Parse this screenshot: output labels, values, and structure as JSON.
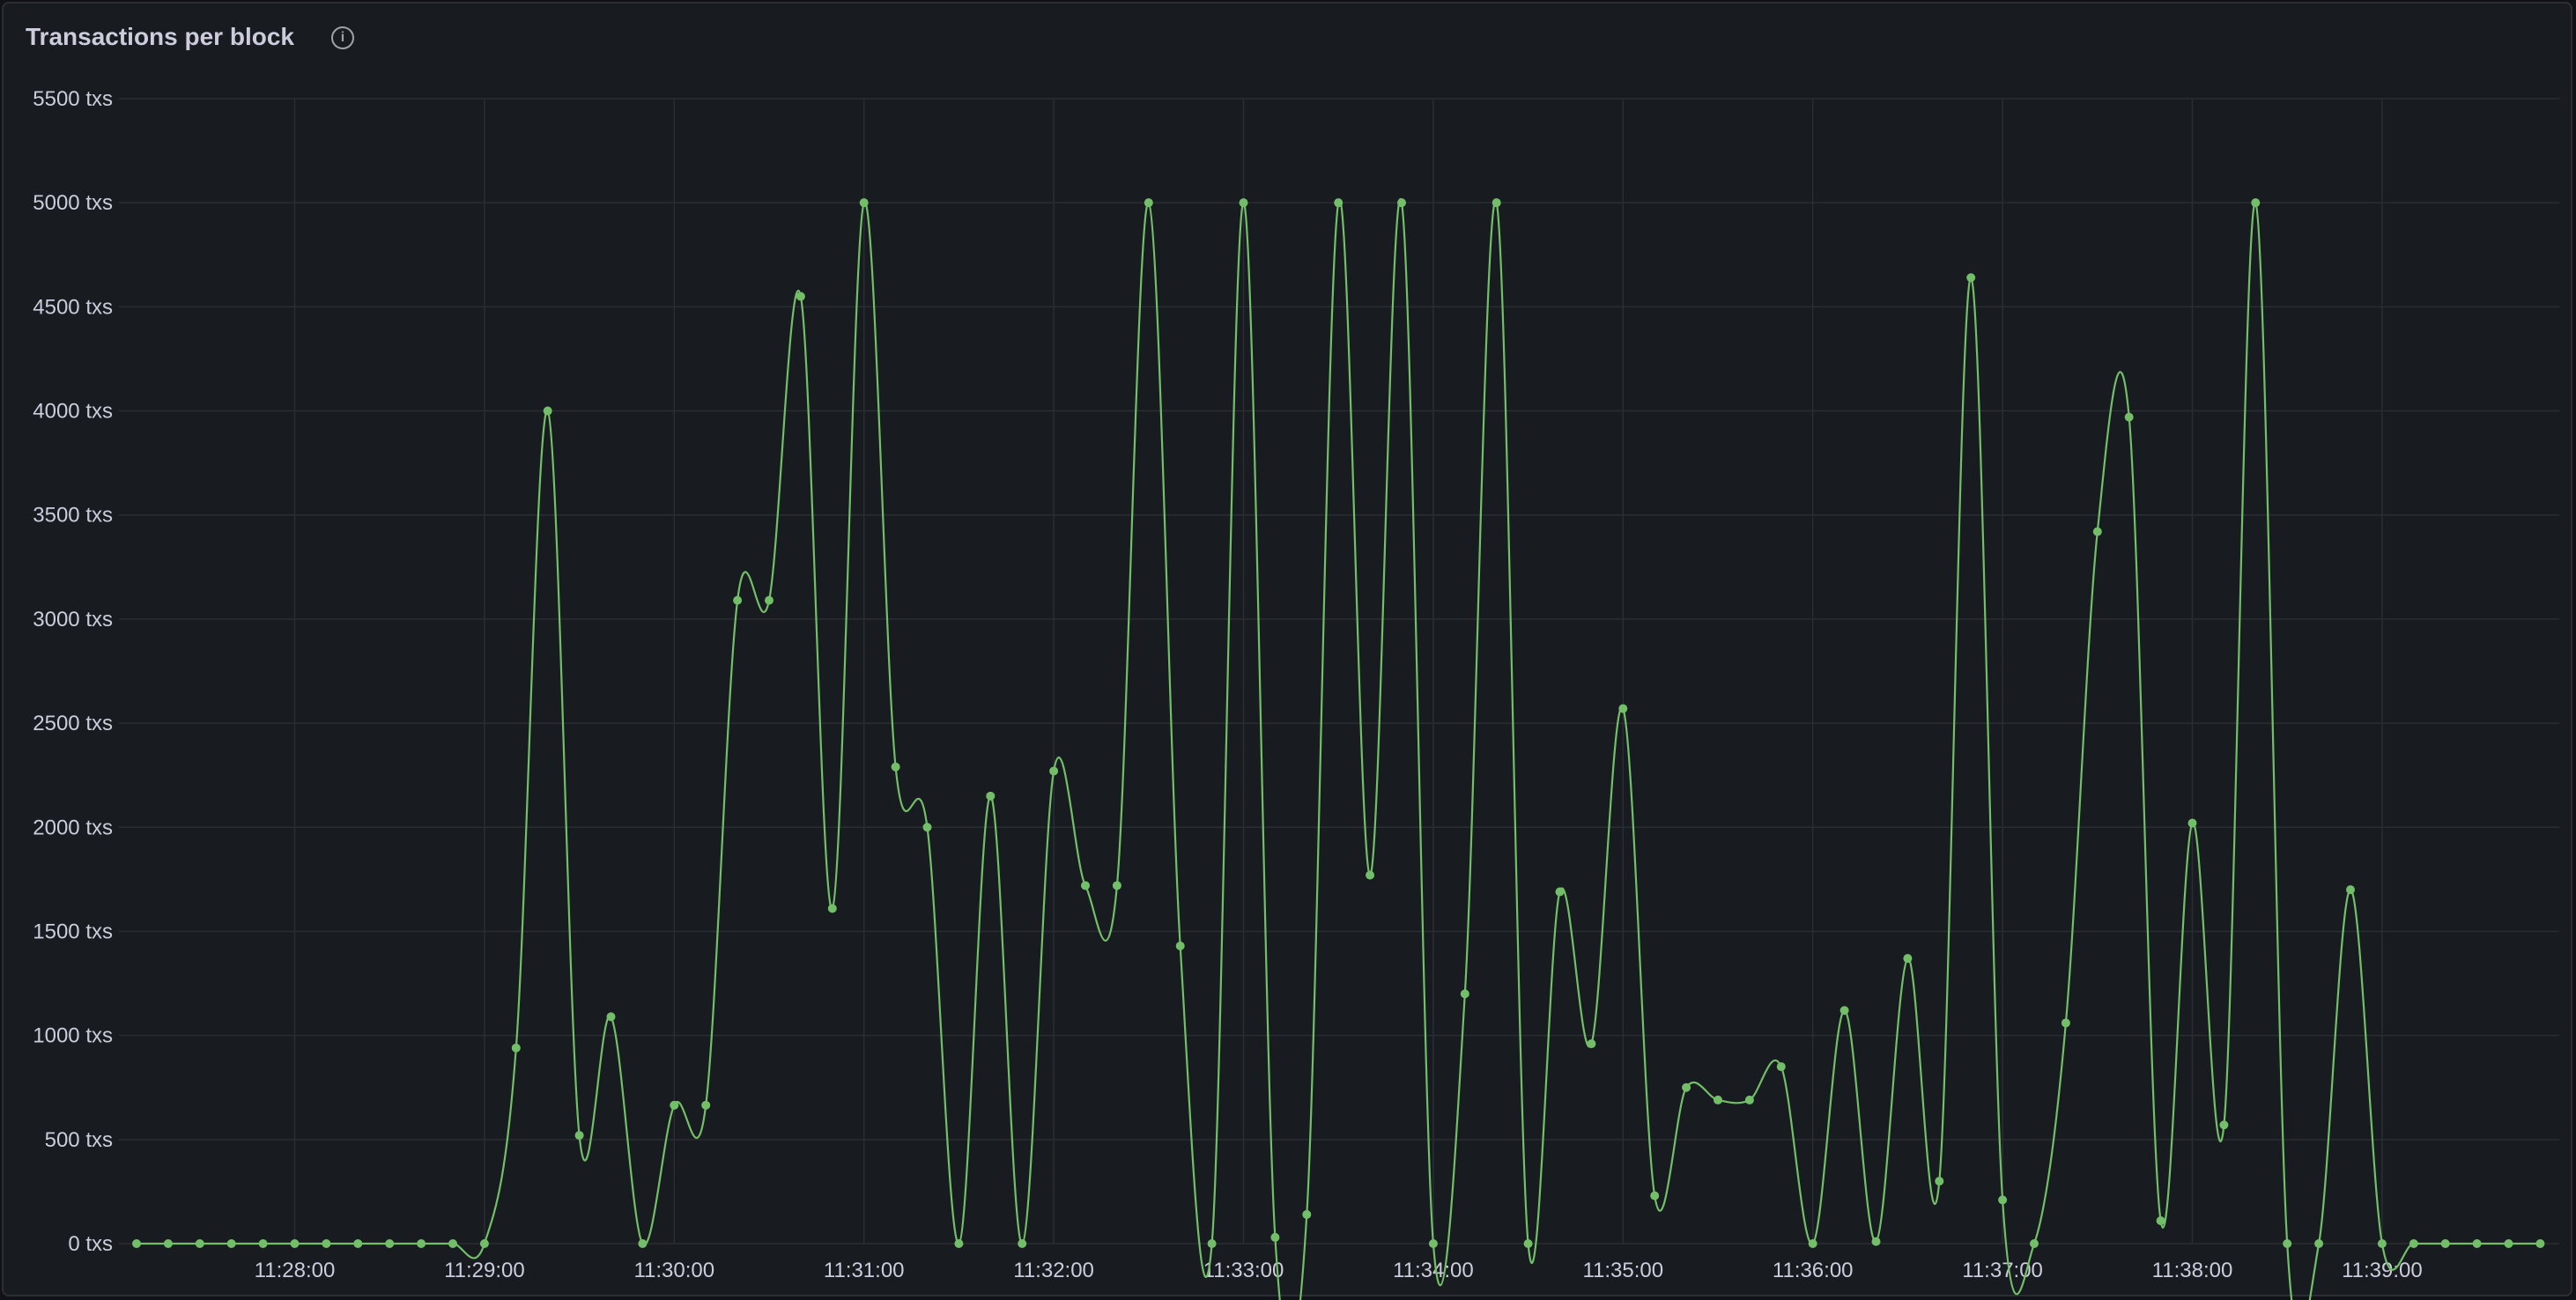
{
  "panel": {
    "title": "Transactions per block",
    "info_icon": "info-circle-icon"
  },
  "chart_data": {
    "type": "line",
    "title": "Transactions per block",
    "xlabel": "",
    "ylabel": "",
    "y_unit": "txs",
    "ylim": [
      0,
      5500
    ],
    "yticks": [
      "0 txs",
      "500 txs",
      "1000 txs",
      "1500 txs",
      "2000 txs",
      "2500 txs",
      "3000 txs",
      "3500 txs",
      "4000 txs",
      "4500 txs",
      "5000 txs",
      "5500 txs"
    ],
    "xticks": [
      "11:28:00",
      "11:29:00",
      "11:30:00",
      "11:31:00",
      "11:32:00",
      "11:33:00",
      "11:34:00",
      "11:35:00",
      "11:36:00",
      "11:37:00",
      "11:38:00",
      "11:39:00"
    ],
    "x_start": "11:27:10",
    "x_step_seconds": 10,
    "grid": true,
    "color": "#73bf69",
    "values": [
      0,
      0,
      0,
      0,
      0,
      0,
      0,
      0,
      0,
      0,
      0,
      0,
      940,
      4000,
      520,
      1090,
      0,
      665,
      665,
      3090,
      3090,
      4550,
      1610,
      5000,
      2290,
      2000,
      0,
      2150,
      0,
      2270,
      1720,
      1720,
      5000,
      1430,
      0,
      5000,
      30,
      140,
      5000,
      1770,
      5000,
      0,
      1200,
      5000,
      0,
      1690,
      960,
      2570,
      230,
      750,
      690,
      690,
      850,
      0,
      1120,
      10,
      1370,
      300,
      4640,
      210,
      0,
      1060,
      3420,
      3970,
      110,
      2020,
      570,
      5000,
      0,
      0,
      1700,
      0,
      0,
      0,
      0,
      0,
      0
    ]
  }
}
